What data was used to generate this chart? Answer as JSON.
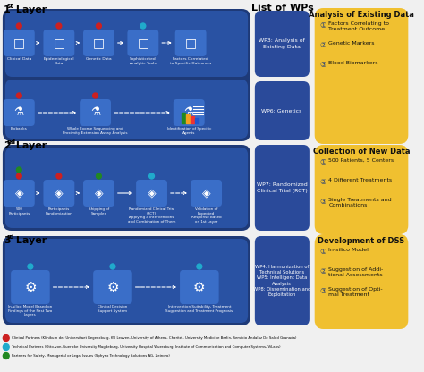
{
  "bg_color": "#f0f0f0",
  "dark_blue": "#1e3a78",
  "mid_blue": "#2952a3",
  "light_blue": "#3a6ec8",
  "wp_blue": "#2a4a9a",
  "yellow": "#f0c030",
  "dot_red": "#cc2020",
  "dot_cyan": "#20aacc",
  "dot_green": "#228822",
  "layer1_title": "1st Layer",
  "layer2_title": "2nd Layer",
  "layer3_title": "3rd Layer",
  "list_wps_title": "List of WPs",
  "wp3_text": "WP3: Analysis of\nExisting Data",
  "wp6_text": "WP6: Genetics",
  "analysis_title": "Analysis of Existing Data",
  "analysis_points": [
    "Factors Correlating to\nTreatment Outcome",
    "Genetic Markers",
    "Blood Biomarkers"
  ],
  "wp7_text": "WP7: Randomized\nClinical Trial (RCT)",
  "collection_title": "Collection of New Data",
  "collection_points": [
    "500 Patients, 5 Centers",
    "4 Different Treatments",
    "Single Treatments and\nCombinations"
  ],
  "wp4_text": "WP4: Harmonization of\nTechnical Solutions\nWP5: Intelligent Data\nAnalysis\nWP8: Dissemination and\nExploitation",
  "dss_title": "Development of DSS",
  "dss_points": [
    "In-silico Model",
    "Suggestion of Addi-\ntional Assessments",
    "Suggestion of Opti-\nmal Treatment"
  ],
  "layer1_row1_labels": [
    "Clinical Data",
    "Epidemiological\nData",
    "Genetic Data",
    "Sophisticated\nAnalytic Tools",
    "Factors Correlated\nto Specific Outcomes"
  ],
  "layer1_row2_labels": [
    "Biobanks",
    "Whole Exome Sequencing and\nProximity Extension Assay Analysis",
    "Identification of Specific\nAgents"
  ],
  "layer2_labels": [
    "500\nParticipants",
    "Participants\nRandomization",
    "Shipping of\nSamples",
    "Randomized Clinical Trial\n(RCT)\nApplying 4 Interventions\nand Combination of Them",
    "Validation of\nExpected\nResponse Based\non 1st Layer"
  ],
  "layer3_labels": [
    "In-silico Model Based on\nFindings of the First Two\nLayers",
    "Clinical Decision\nSupport System",
    "Intervention Suitability, Treatment\nSuggestion and Treatment Prognosis"
  ],
  "legend1_text": "Clinical Partners (Klinikum der Universitaet Regensburg, KU Leuven, University of Athens, Charité - University Medicine Berlin, Servicio Andaluz De Salud Granada)",
  "legend2_text": "Technical Partners (Otto-von-Guericke University Magdeburg, University Hospital Wuerzburg, Institute of Communication and Computer Systems, ViLabs)",
  "legend3_text": "Partners for Safety, Managerial or Legal Issues (Sphynx Technology Solutions AG, Zeincro)"
}
